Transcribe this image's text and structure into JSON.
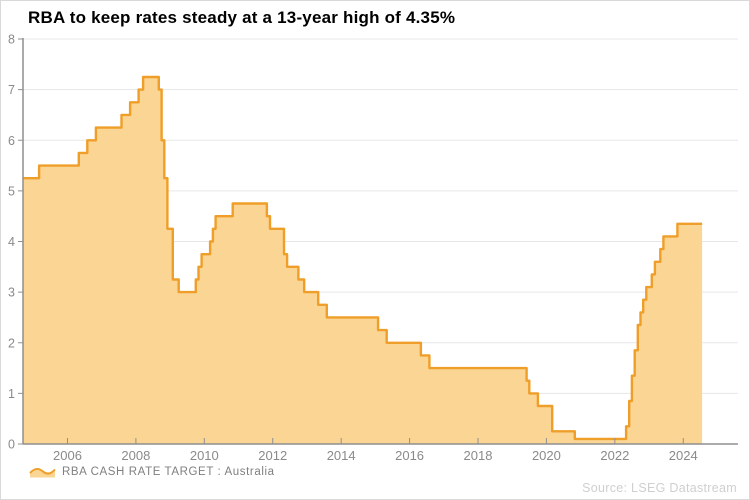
{
  "title": "RBA to keep rates steady at a 13-year high of 4.35%",
  "legend": {
    "label": "RBA CASH RATE TARGET : Australia"
  },
  "source": "Source: LSEG Datastream",
  "chart_data": {
    "type": "area",
    "title": "RBA to keep rates steady at a 13-year high of 4.35%",
    "series": [
      {
        "name": "RBA CASH RATE TARGET : Australia",
        "step": "after",
        "points": [
          [
            2004.7,
            5.25
          ],
          [
            2005.17,
            5.5
          ],
          [
            2006.33,
            5.75
          ],
          [
            2006.58,
            6.0
          ],
          [
            2006.83,
            6.25
          ],
          [
            2007.58,
            6.5
          ],
          [
            2007.83,
            6.75
          ],
          [
            2008.08,
            7.0
          ],
          [
            2008.21,
            7.25
          ],
          [
            2008.67,
            7.0
          ],
          [
            2008.75,
            6.0
          ],
          [
            2008.83,
            5.25
          ],
          [
            2008.92,
            4.25
          ],
          [
            2009.08,
            3.25
          ],
          [
            2009.25,
            3.0
          ],
          [
            2009.75,
            3.25
          ],
          [
            2009.83,
            3.5
          ],
          [
            2009.92,
            3.75
          ],
          [
            2010.17,
            4.0
          ],
          [
            2010.25,
            4.25
          ],
          [
            2010.33,
            4.5
          ],
          [
            2010.83,
            4.75
          ],
          [
            2011.83,
            4.5
          ],
          [
            2011.92,
            4.25
          ],
          [
            2012.33,
            3.75
          ],
          [
            2012.42,
            3.5
          ],
          [
            2012.75,
            3.25
          ],
          [
            2012.92,
            3.0
          ],
          [
            2013.33,
            2.75
          ],
          [
            2013.58,
            2.5
          ],
          [
            2015.08,
            2.25
          ],
          [
            2015.33,
            2.0
          ],
          [
            2016.33,
            1.75
          ],
          [
            2016.58,
            1.5
          ],
          [
            2019.42,
            1.25
          ],
          [
            2019.5,
            1.0
          ],
          [
            2019.75,
            0.75
          ],
          [
            2020.17,
            0.25
          ],
          [
            2020.83,
            0.1
          ],
          [
            2022.33,
            0.35
          ],
          [
            2022.42,
            0.85
          ],
          [
            2022.5,
            1.35
          ],
          [
            2022.58,
            1.85
          ],
          [
            2022.67,
            2.35
          ],
          [
            2022.75,
            2.6
          ],
          [
            2022.83,
            2.85
          ],
          [
            2022.92,
            3.1
          ],
          [
            2023.08,
            3.35
          ],
          [
            2023.17,
            3.6
          ],
          [
            2023.33,
            3.85
          ],
          [
            2023.42,
            4.1
          ],
          [
            2023.83,
            4.35
          ],
          [
            2024.55,
            4.35
          ]
        ]
      }
    ],
    "x_ticks": [
      2006,
      2008,
      2010,
      2012,
      2014,
      2016,
      2018,
      2020,
      2022,
      2024
    ],
    "y_ticks": [
      0,
      1,
      2,
      3,
      4,
      5,
      6,
      7,
      8
    ],
    "xlim": [
      2004.7,
      2025.6
    ],
    "ylim": [
      0,
      8
    ],
    "grid": "horizontal",
    "legend_position": "bottom-left",
    "colors": {
      "line": "#ef9f29",
      "fill": "#fbd593",
      "grid": "#e7e7e7",
      "axis": "#8f8f8f",
      "tick_label": "#8a8a8a"
    }
  }
}
